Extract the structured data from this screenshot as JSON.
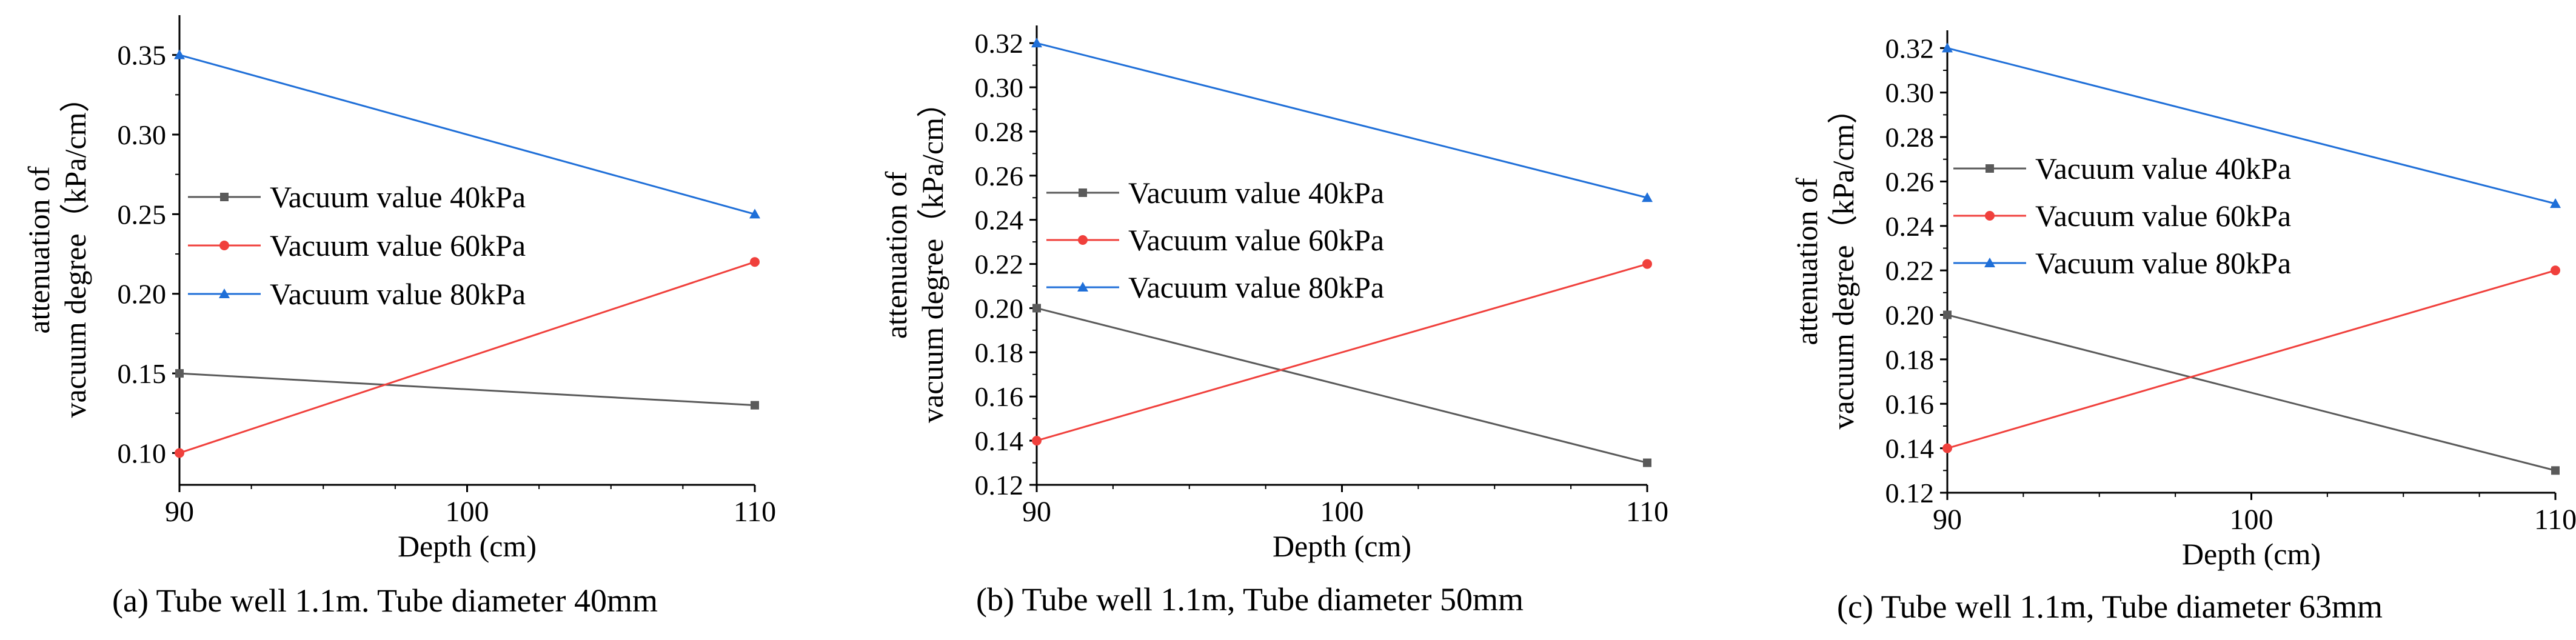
{
  "chart_data": [
    {
      "type": "line",
      "caption": "(a)  Tube well 1.1m. Tube diameter 40mm",
      "xlabel": "Depth (cm)",
      "ylabel_lines": [
        "attenuation of",
        "vacuum degree（kPa/cm）"
      ],
      "x": [
        90,
        110
      ],
      "xlim": [
        90,
        110
      ],
      "ylim": [
        0.08,
        0.375
      ],
      "xticks": [
        90,
        100,
        110
      ],
      "yticks": [
        0.1,
        0.15,
        0.2,
        0.25,
        0.3,
        0.35
      ],
      "ytick_labels": [
        "0.10",
        "0.15",
        "0.20",
        "0.25",
        "0.30",
        "0.35"
      ],
      "legend_position": "center-left",
      "series": [
        {
          "name": "Vacuum value 40kPa",
          "values": [
            0.15,
            0.13
          ],
          "color": "#5a5a5a",
          "marker": "square"
        },
        {
          "name": "Vacuum value 60kPa",
          "values": [
            0.1,
            0.22
          ],
          "color": "#f0403c",
          "marker": "circle"
        },
        {
          "name": "Vacuum value 80kPa",
          "values": [
            0.35,
            0.25
          ],
          "color": "#1f6fd8",
          "marker": "triangle"
        }
      ]
    },
    {
      "type": "line",
      "caption": "(b)  Tube well 1.1m, Tube diameter 50mm",
      "xlabel": "Depth (cm)",
      "ylabel_lines": [
        "attenuation of",
        "vacuum degree（kPa/cm）"
      ],
      "x": [
        90,
        110
      ],
      "xlim": [
        90,
        110
      ],
      "ylim": [
        0.12,
        0.328
      ],
      "xticks": [
        90,
        100,
        110
      ],
      "yticks": [
        0.12,
        0.14,
        0.16,
        0.18,
        0.2,
        0.22,
        0.24,
        0.26,
        0.28,
        0.3,
        0.32
      ],
      "ytick_labels": [
        "0.12",
        "0.14",
        "0.16",
        "0.18",
        "0.20",
        "0.22",
        "0.24",
        "0.26",
        "0.28",
        "0.30",
        "0.32"
      ],
      "legend_position": "center-left",
      "series": [
        {
          "name": "Vacuum value 40kPa",
          "values": [
            0.2,
            0.13
          ],
          "color": "#5a5a5a",
          "marker": "square"
        },
        {
          "name": "Vacuum value 60kPa",
          "values": [
            0.14,
            0.22
          ],
          "color": "#f0403c",
          "marker": "circle"
        },
        {
          "name": "Vacuum value 80kPa",
          "values": [
            0.32,
            0.25
          ],
          "color": "#1f6fd8",
          "marker": "triangle"
        }
      ]
    },
    {
      "type": "line",
      "caption": "(c)  Tube well 1.1m, Tube diameter 63mm",
      "xlabel": "Depth (cm)",
      "ylabel_lines": [
        "attenuation of",
        "vacuum degree（kPa/cm）"
      ],
      "x": [
        90,
        110
      ],
      "xlim": [
        90,
        110
      ],
      "ylim": [
        0.12,
        0.328
      ],
      "xticks": [
        90,
        100,
        110
      ],
      "yticks": [
        0.12,
        0.14,
        0.16,
        0.18,
        0.2,
        0.22,
        0.24,
        0.26,
        0.28,
        0.3,
        0.32
      ],
      "ytick_labels": [
        "0.12",
        "0.14",
        "0.16",
        "0.18",
        "0.20",
        "0.22",
        "0.24",
        "0.26",
        "0.28",
        "0.30",
        "0.32"
      ],
      "legend_position": "top-left",
      "series": [
        {
          "name": "Vacuum value 40kPa",
          "values": [
            0.2,
            0.13
          ],
          "color": "#5a5a5a",
          "marker": "square"
        },
        {
          "name": "Vacuum value 60kPa",
          "values": [
            0.14,
            0.22
          ],
          "color": "#f0403c",
          "marker": "circle"
        },
        {
          "name": "Vacuum value 80kPa",
          "values": [
            0.32,
            0.25
          ],
          "color": "#1f6fd8",
          "marker": "triangle"
        }
      ]
    }
  ]
}
